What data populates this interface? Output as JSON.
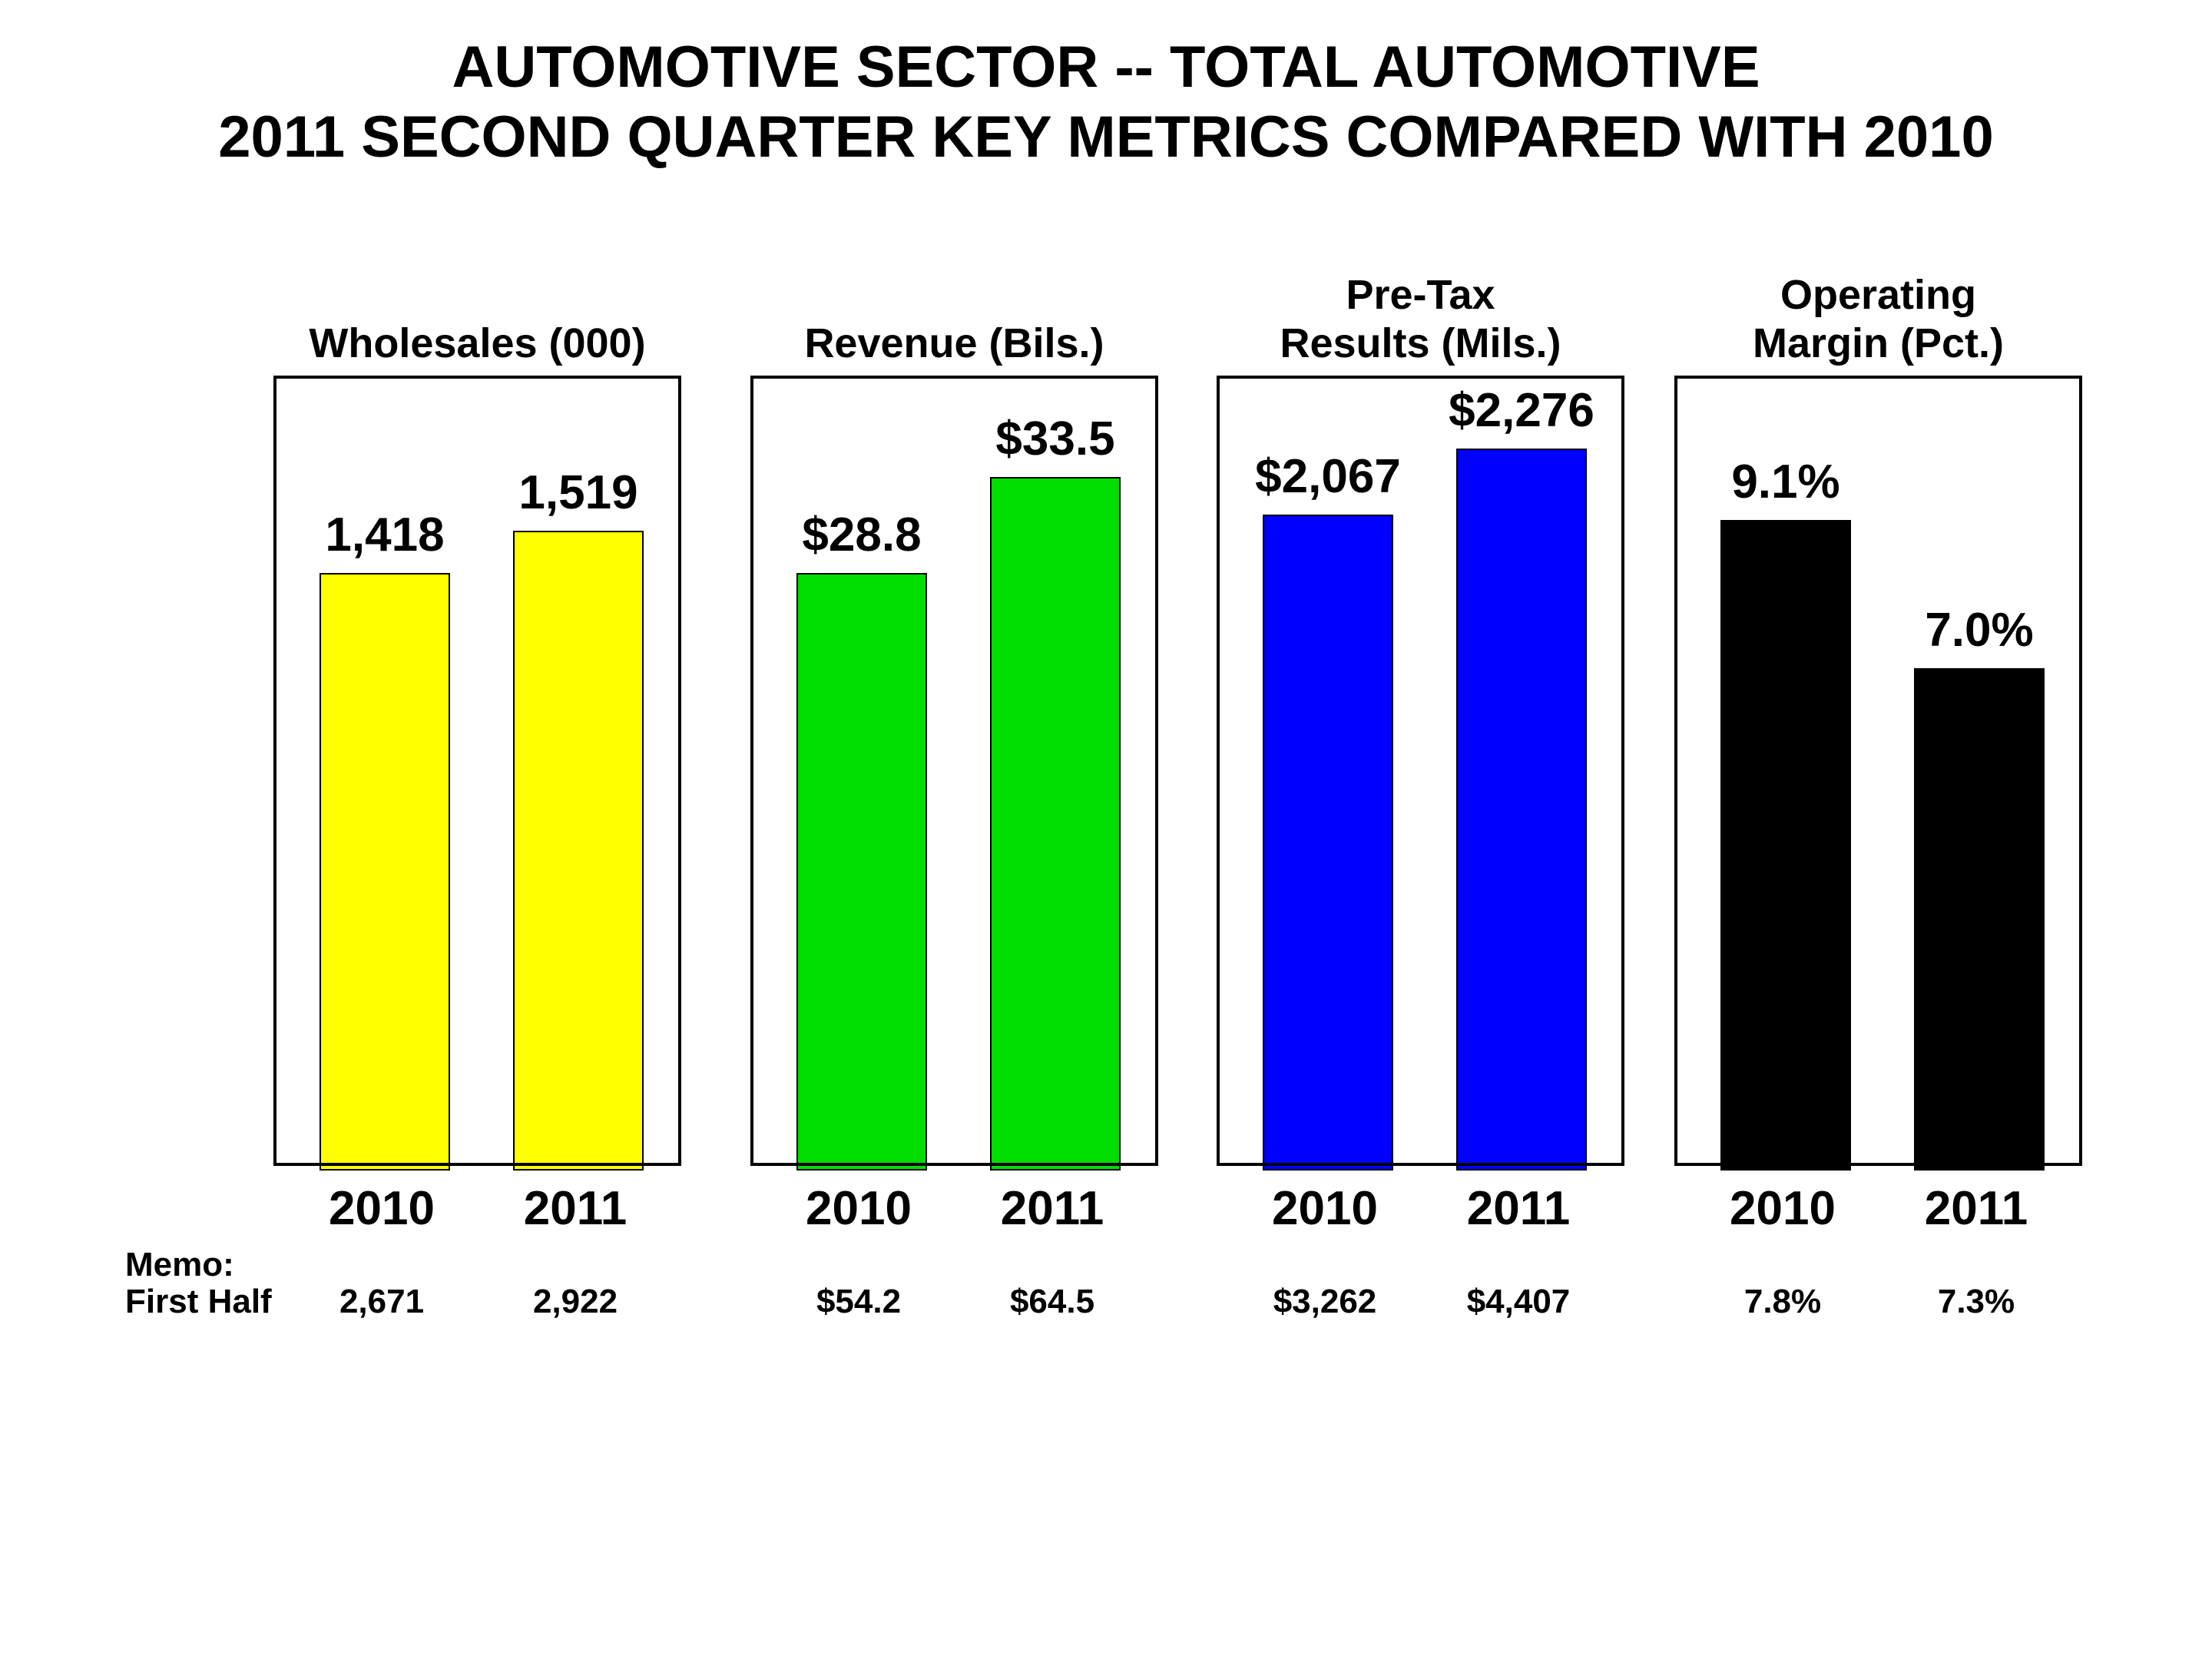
{
  "title": {
    "line1": "AUTOMOTIVE SECTOR -- TOTAL AUTOMOTIVE",
    "line2": "2011 SECOND QUARTER KEY METRICS COMPARED WITH 2010"
  },
  "years": [
    "2010",
    "2011"
  ],
  "memo": {
    "label1": "Memo:",
    "label2": "First Half"
  },
  "colors": {
    "yellow": "#FFFF00",
    "green": "#00DD00",
    "blue": "#0000FF",
    "black": "#000000",
    "background": "#FFFFFF"
  },
  "chart_data": [
    {
      "type": "bar",
      "title": "Wholesales (000)",
      "title_lines": [
        "Wholesales (000)"
      ],
      "categories": [
        "2010",
        "2011"
      ],
      "values": [
        1418,
        1519
      ],
      "value_labels": [
        "1,418",
        "1,519"
      ],
      "bar_color": "#FFFF00",
      "ylim": [
        0,
        1885
      ],
      "grid": false,
      "legend": false,
      "memo_first_half": [
        2671,
        2922
      ],
      "memo_first_half_labels": [
        "2,671",
        "2,922"
      ]
    },
    {
      "type": "bar",
      "title": "Revenue (Bils.)",
      "title_lines": [
        "Revenue (Bils.)"
      ],
      "categories": [
        "2010",
        "2011"
      ],
      "values": [
        28.8,
        33.5
      ],
      "value_labels": [
        "$28.8",
        "$33.5"
      ],
      "bar_color": "#00DD00",
      "ylim": [
        0,
        38.3
      ],
      "grid": false,
      "legend": false,
      "memo_first_half": [
        54.2,
        64.5
      ],
      "memo_first_half_labels": [
        "$54.2",
        "$64.5"
      ]
    },
    {
      "type": "bar",
      "title": "Pre-Tax Results (Mils.)",
      "title_lines": [
        "Pre-Tax",
        "Results (Mils.)"
      ],
      "categories": [
        "2010",
        "2011"
      ],
      "values": [
        2067,
        2276
      ],
      "value_labels": [
        "$2,067",
        "$2,276"
      ],
      "bar_color": "#0000FF",
      "ylim": [
        0,
        2500
      ],
      "grid": false,
      "legend": false,
      "memo_first_half": [
        3262,
        4407
      ],
      "memo_first_half_labels": [
        "$3,262",
        "$4,407"
      ]
    },
    {
      "type": "bar",
      "title": "Operating Margin (Pct.)",
      "title_lines": [
        "Operating",
        "Margin (Pct.)"
      ],
      "categories": [
        "2010",
        "2011"
      ],
      "values": [
        9.1,
        7.0
      ],
      "value_labels": [
        "9.1%",
        "7.0%"
      ],
      "bar_color": "#000000",
      "ylim": [
        0,
        11.1
      ],
      "grid": false,
      "legend": false,
      "memo_first_half": [
        7.8,
        7.3
      ],
      "memo_first_half_labels": [
        "7.8%",
        "7.3%"
      ]
    }
  ]
}
